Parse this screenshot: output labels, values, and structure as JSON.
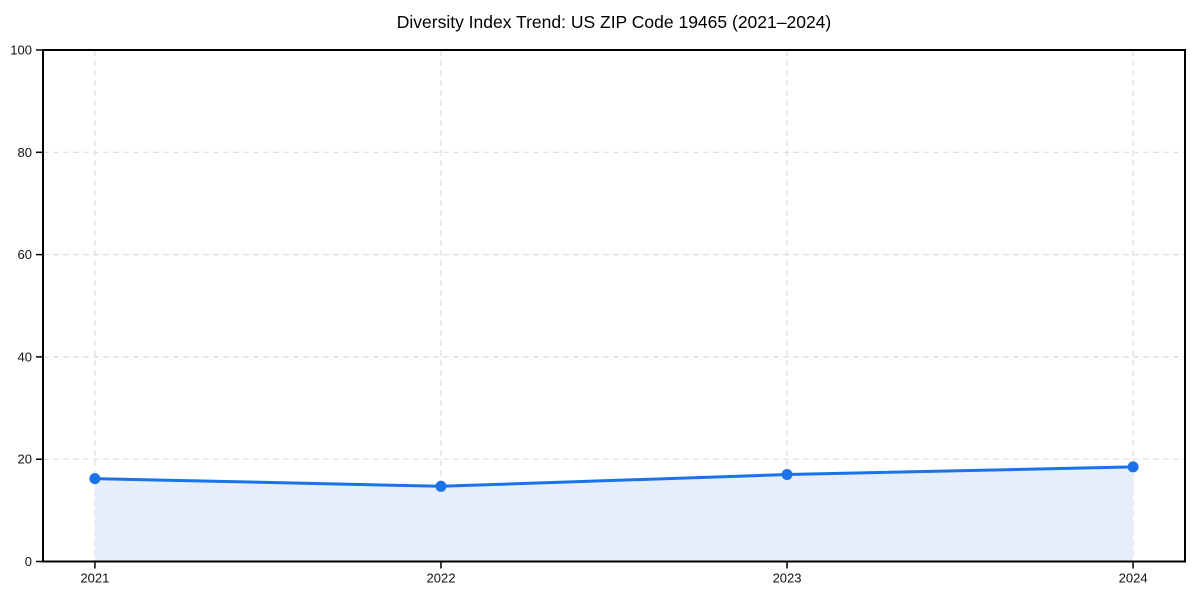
{
  "page": {
    "background_color": "#ffffff"
  },
  "chart_data": {
    "type": "line",
    "title": "Diversity Index Trend: US ZIP Code 19465 (2021–2024)",
    "categories": [
      "2021",
      "2022",
      "2023",
      "2024"
    ],
    "x": [
      2021,
      2022,
      2023,
      2024
    ],
    "series": [
      {
        "name": "Diversity Index",
        "values": [
          16.2,
          14.7,
          17.0,
          18.5
        ]
      }
    ],
    "xlabel": "",
    "ylabel": "",
    "ylim": [
      0,
      100
    ],
    "yticks": [
      0,
      20,
      40,
      60,
      80,
      100
    ],
    "grid": true,
    "grid_style": "dashed",
    "legend": "none",
    "marker": "circle",
    "area_fill": true,
    "colors": {
      "line": "#1a73e8",
      "marker": "#1a73e8",
      "fill": "#e6eefc",
      "grid": "#dedede",
      "frame": "#000000",
      "tick_text": "#111111",
      "background": "#ffffff"
    }
  }
}
